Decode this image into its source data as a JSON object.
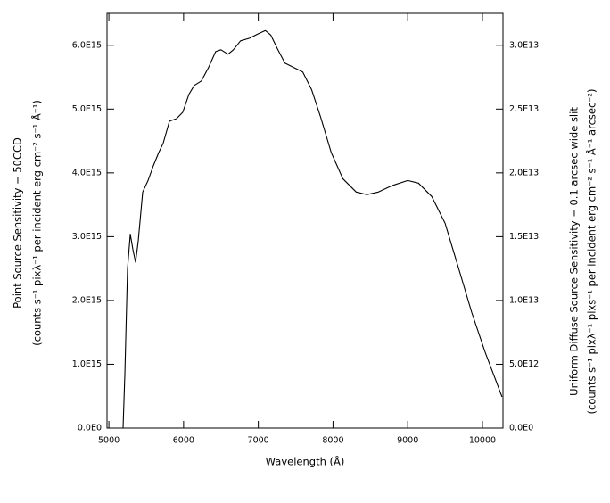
{
  "chart_data": {
    "type": "line",
    "x_label": "Wavelength (Å)",
    "y_label": [
      "Point Source Sensitivity − 50CCD",
      "(counts s⁻¹ pixλ⁻¹ per incident erg cm⁻² s⁻¹ Å⁻¹)"
    ],
    "y2_label": [
      "Uniform Diffuse Source Sensitivity − 0.1 arcsec wide slit",
      "(counts s⁻¹ pixλ⁻¹  pixs⁻¹ per incident erg cm⁻² s⁻¹ Å⁻¹ arcsec⁻²)"
    ],
    "xlim": [
      4975,
      10275
    ],
    "xticks": [
      5000,
      6000,
      7000,
      8000,
      9000,
      10000
    ],
    "ylim": [
      0,
      6500000000000000.0
    ],
    "yticks": [
      {
        "value": 0,
        "label": "0.0E0"
      },
      {
        "value": 1000000000000000.0,
        "label": "1.0E15"
      },
      {
        "value": 2000000000000000.0,
        "label": "2.0E15"
      },
      {
        "value": 3000000000000000.0,
        "label": "3.0E15"
      },
      {
        "value": 4000000000000000.0,
        "label": "4.0E15"
      },
      {
        "value": 5000000000000000.0,
        "label": "5.0E15"
      },
      {
        "value": 6000000000000000.0,
        "label": "6.0E15"
      }
    ],
    "y2lim": [
      0,
      32500000000000.0
    ],
    "y2ticks": [
      {
        "value": 0,
        "label": "0.0E0"
      },
      {
        "value": 5000000000000.0,
        "label": "5.0E12"
      },
      {
        "value": 10000000000000.0,
        "label": "1.0E13"
      },
      {
        "value": 15000000000000.0,
        "label": "1.5E13"
      },
      {
        "value": 20000000000000.0,
        "label": "2.0E13"
      },
      {
        "value": 25000000000000.0,
        "label": "2.5E13"
      },
      {
        "value": 30000000000000.0,
        "label": "3.0E13"
      }
    ],
    "color": "#000000",
    "x": [
      5190,
      5214,
      5250,
      5286,
      5321,
      5357,
      5393,
      5452,
      5524,
      5595,
      5667,
      5726,
      5810,
      5905,
      5988,
      6071,
      6143,
      6238,
      6333,
      6429,
      6500,
      6595,
      6667,
      6762,
      6881,
      7000,
      7095,
      7167,
      7262,
      7357,
      7476,
      7595,
      7714,
      7833,
      7976,
      8131,
      8310,
      8452,
      8607,
      8786,
      9000,
      9143,
      9321,
      9500,
      9679,
      9857,
      10036,
      10262
    ],
    "values": [
      0,
      840000000000000.0,
      2500000000000000.0,
      3040000000000000.0,
      2800000000000000.0,
      2600000000000000.0,
      2930000000000000.0,
      3700000000000000.0,
      3880000000000000.0,
      4110000000000000.0,
      4320000000000000.0,
      4460000000000000.0,
      4810000000000000.0,
      4850000000000000.0,
      4950000000000000.0,
      5230000000000000.0,
      5370000000000000.0,
      5440000000000000.0,
      5650000000000000.0,
      5900000000000000.0,
      5930000000000000.0,
      5860000000000000.0,
      5930000000000000.0,
      6070000000000000.0,
      6110000000000000.0,
      6180000000000000.0,
      6230000000000000.0,
      6160000000000000.0,
      5930000000000000.0,
      5720000000000000.0,
      5650000000000000.0,
      5580000000000000.0,
      5300000000000000.0,
      4880000000000000.0,
      4320000000000000.0,
      3910000000000000.0,
      3700000000000000.0,
      3660000000000000.0,
      3700000000000000.0,
      3800000000000000.0,
      3880000000000000.0,
      3840000000000000.0,
      3630000000000000.0,
      3210000000000000.0,
      2510000000000000.0,
      1810000000000000.0,
      1190000000000000.0,
      490000000000000.0
    ]
  }
}
